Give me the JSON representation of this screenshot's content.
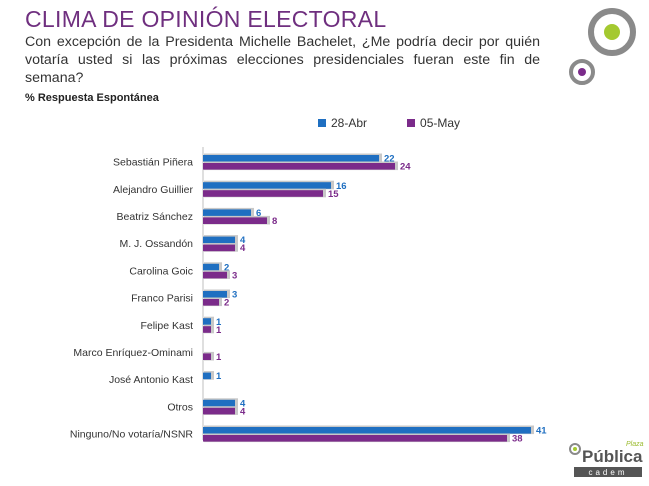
{
  "header": {
    "title": "CLIMA DE OPINIÓN ELECTORAL",
    "question": "Con excepción de la Presidenta Michelle Bachelet, ¿Me podría decir por quién votaría usted si las próximas elecciones presidenciales fueran este fin de semana?",
    "subtitle": "% Respuesta Espontánea"
  },
  "brand": {
    "name": "Pública",
    "prefix": "Plaza",
    "sub": "cadem"
  },
  "colors": {
    "series1": "#1f6fc1",
    "series2": "#7b2b8a",
    "title": "#6f2f7f",
    "accent_green": "#a4c930"
  },
  "chart_data": {
    "type": "bar",
    "orientation": "horizontal",
    "categories": [
      "Sebastián Piñera",
      "Alejandro  Guillier",
      "Beatriz Sánchez",
      "M. J. Ossandón",
      "Carolina Goic",
      "Franco Parisi",
      "Felipe Kast",
      "Marco Enríquez-Ominami",
      "José Antonio Kast",
      "Otros",
      "Ninguno/No votaría/NSNR"
    ],
    "series": [
      {
        "name": "28-Abr",
        "values": [
          22,
          16,
          6,
          4,
          2,
          3,
          1,
          null,
          1,
          4,
          41
        ]
      },
      {
        "name": "05-May",
        "values": [
          24,
          15,
          8,
          4,
          3,
          2,
          1,
          1,
          null,
          4,
          38
        ]
      }
    ],
    "xlim": [
      0,
      42
    ],
    "legend_position": "top",
    "grid": false
  }
}
